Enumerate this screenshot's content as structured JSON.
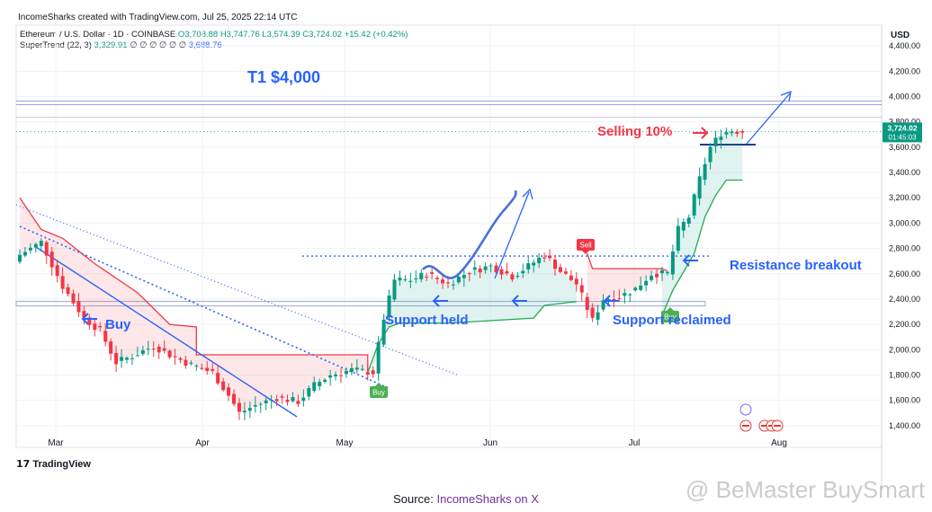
{
  "header": {
    "created": "IncomeSharks created with TradingView.com, Jul 25, 2025 22:14 UTC"
  },
  "legend": {
    "symbol": "Ethereum / U.S. Dollar · 1D · COINBASE",
    "ohlc": "O3,708.88 H3,747.76 L3,574.39 C3,724.02 +15.42 (+0.42%)",
    "indicator_name": "SuperTrend (22, 3)",
    "indicator_value1": "3,329.91",
    "indicator_placeholders": "∅ ∅ ∅ ∅ ∅ ∅",
    "indicator_value2": "3,688.76"
  },
  "axis": {
    "currency": "USD"
  },
  "price_label": {
    "price": "3,724.02",
    "countdown": "01:45:03"
  },
  "signals": {
    "buy1": "Buy",
    "buy2": "Buy",
    "sell": "Sell"
  },
  "footer": {
    "tradingview": "TradingView",
    "source_prefix": "Source: ",
    "source_link": "IncomeSharks on X",
    "watermark": "@ BeMaster BuySmart"
  },
  "colors": {
    "up": "#089981",
    "down": "#f23645",
    "annotation": "#2962ff",
    "red_text": "#f23645"
  },
  "chart_data": {
    "type": "candlestick",
    "title": "",
    "ylim": [
      1250,
      4550
    ],
    "y_ticks": [
      "1,400.00",
      "1,600.00",
      "1,800.00",
      "2,000.00",
      "2,200.00",
      "2,400.00",
      "2,600.00",
      "2,800.00",
      "3,000.00",
      "3,200.00",
      "3,400.00",
      "3,600.00",
      "3,800.00",
      "4,000.00",
      "4,200.00",
      "4,400.00"
    ],
    "x_ticks": [
      "Mar",
      "Apr",
      "May",
      "Jun",
      "Jul",
      "Aug"
    ],
    "price_path_anchors": [
      [
        0,
        2750
      ],
      [
        4,
        2850
      ],
      [
        8,
        2500
      ],
      [
        12,
        2250
      ],
      [
        15,
        2150
      ],
      [
        18,
        1900
      ],
      [
        21,
        1950
      ],
      [
        25,
        2030
      ],
      [
        28,
        1960
      ],
      [
        32,
        1880
      ],
      [
        36,
        1820
      ],
      [
        39,
        1640
      ],
      [
        41,
        1500
      ],
      [
        44,
        1560
      ],
      [
        48,
        1620
      ],
      [
        52,
        1590
      ],
      [
        55,
        1720
      ],
      [
        58,
        1800
      ],
      [
        62,
        1840
      ],
      [
        66,
        1820
      ],
      [
        68,
        2250
      ],
      [
        70,
        2550
      ],
      [
        73,
        2550
      ],
      [
        76,
        2600
      ],
      [
        80,
        2520
      ],
      [
        84,
        2620
      ],
      [
        88,
        2660
      ],
      [
        92,
        2580
      ],
      [
        95,
        2660
      ],
      [
        98,
        2750
      ],
      [
        101,
        2620
      ],
      [
        104,
        2520
      ],
      [
        107,
        2230
      ],
      [
        109,
        2400
      ],
      [
        112,
        2420
      ],
      [
        115,
        2480
      ],
      [
        118,
        2600
      ],
      [
        121,
        2600
      ],
      [
        123,
        2950
      ],
      [
        125,
        3050
      ],
      [
        127,
        3350
      ],
      [
        129,
        3600
      ],
      [
        131,
        3710
      ],
      [
        133,
        3730
      ],
      [
        135,
        3724
      ]
    ],
    "supertrend_bear": [
      [
        0,
        3200
      ],
      [
        4,
        2950
      ],
      [
        8,
        2880
      ],
      [
        14,
        2680
      ],
      [
        22,
        2450
      ],
      [
        28,
        2200
      ],
      [
        33,
        2180
      ],
      [
        33,
        1960
      ],
      [
        65,
        1960
      ],
      [
        65,
        1820
      ]
    ],
    "supertrend_bull_1": [
      [
        65,
        1820
      ],
      [
        67,
        2050
      ],
      [
        69,
        2180
      ],
      [
        71,
        2210
      ],
      [
        80,
        2210
      ],
      [
        96,
        2250
      ],
      [
        98,
        2350
      ],
      [
        104,
        2380
      ]
    ],
    "supertrend_bear_2": [
      [
        106,
        2760
      ],
      [
        107,
        2640
      ],
      [
        120,
        2640
      ],
      [
        121,
        2620
      ]
    ],
    "supertrend_bull_2": [
      [
        120,
        2270
      ],
      [
        122,
        2470
      ],
      [
        126,
        2760
      ],
      [
        128,
        3050
      ],
      [
        130,
        3220
      ],
      [
        132,
        3340
      ],
      [
        135,
        3340
      ]
    ],
    "current_price": 3724.02,
    "annotations": {
      "target": "T1 $4,000",
      "selling": "Selling 10%",
      "buy_label": "Buy",
      "support_held": "Support held",
      "support_reclaimed": "Support reclaimed",
      "resistance_breakout": "Resistance breakout"
    },
    "horizontal_levels": [
      3950,
      2360,
      2740,
      3620
    ],
    "grid": true,
    "legend_position": "top-left"
  }
}
